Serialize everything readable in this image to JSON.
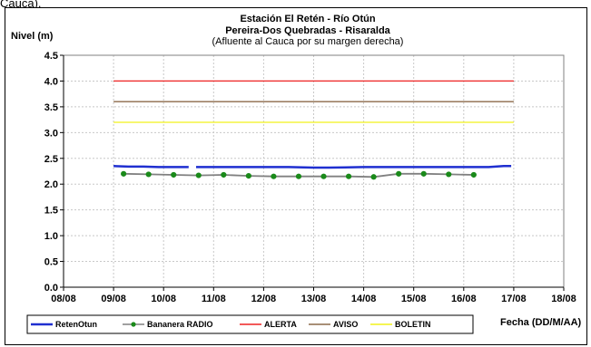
{
  "top_fragment": "Cauca).",
  "chart_data": {
    "type": "line",
    "title": [
      "Estación El Retén - Río Otún",
      "Pereira-Dos Quebradas - Risaralda"
    ],
    "subtitle": "(Afluente al Cauca por su margen derecha)",
    "ylabel": "Nivel (m)",
    "xlabel": "Fecha (DD/M/AA)",
    "ylim": [
      0,
      4.5
    ],
    "xlim": [
      0,
      10
    ],
    "yticks": [
      "0.0",
      "0.5",
      "1.0",
      "1.5",
      "2.0",
      "2.5",
      "3.0",
      "3.5",
      "4.0",
      "4.5"
    ],
    "xticks": [
      "08/08",
      "09/08",
      "10/08",
      "11/08",
      "12/08",
      "13/08",
      "14/08",
      "15/08",
      "16/08",
      "17/08",
      "18/08"
    ],
    "grid": true,
    "legend_position": "bottom",
    "series": [
      {
        "name": "RetenOtun",
        "color": "#1f2fd0",
        "marker": false,
        "segments": [
          {
            "x": [
              1.0,
              1.3,
              1.6,
              1.9,
              2.1,
              2.3,
              2.5
            ],
            "y": [
              2.35,
              2.34,
              2.34,
              2.33,
              2.33,
              2.33,
              2.33
            ]
          },
          {
            "x": [
              2.65,
              3.5,
              4.5,
              5.0,
              5.3,
              6.0,
              7.0,
              8.0,
              8.5,
              8.8,
              8.95
            ],
            "y": [
              2.33,
              2.33,
              2.33,
              2.32,
              2.32,
              2.33,
              2.33,
              2.33,
              2.33,
              2.35,
              2.35
            ]
          }
        ]
      },
      {
        "name": "Bananera RADIO",
        "color": "#808080",
        "marker_color": "#1a8a1a",
        "marker": true,
        "x": [
          1.2,
          1.7,
          2.2,
          2.7,
          3.2,
          3.7,
          4.2,
          4.7,
          5.2,
          5.7,
          6.2,
          6.7,
          7.2,
          7.7,
          8.2
        ],
        "y": [
          2.2,
          2.19,
          2.18,
          2.17,
          2.18,
          2.16,
          2.15,
          2.15,
          2.15,
          2.15,
          2.14,
          2.2,
          2.2,
          2.19,
          2.18
        ]
      },
      {
        "name": "ALERTA",
        "color": "#ee2222",
        "marker": false,
        "x": [
          1.0,
          9.0
        ],
        "y": [
          4.0,
          4.0
        ]
      },
      {
        "name": "AVISO",
        "color": "#8b6a4a",
        "marker": false,
        "x": [
          1.0,
          9.0
        ],
        "y": [
          3.6,
          3.6
        ]
      },
      {
        "name": "BOLETIN",
        "color": "#f2f21a",
        "marker": false,
        "x": [
          1.0,
          9.0
        ],
        "y": [
          3.2,
          3.2
        ]
      }
    ]
  }
}
